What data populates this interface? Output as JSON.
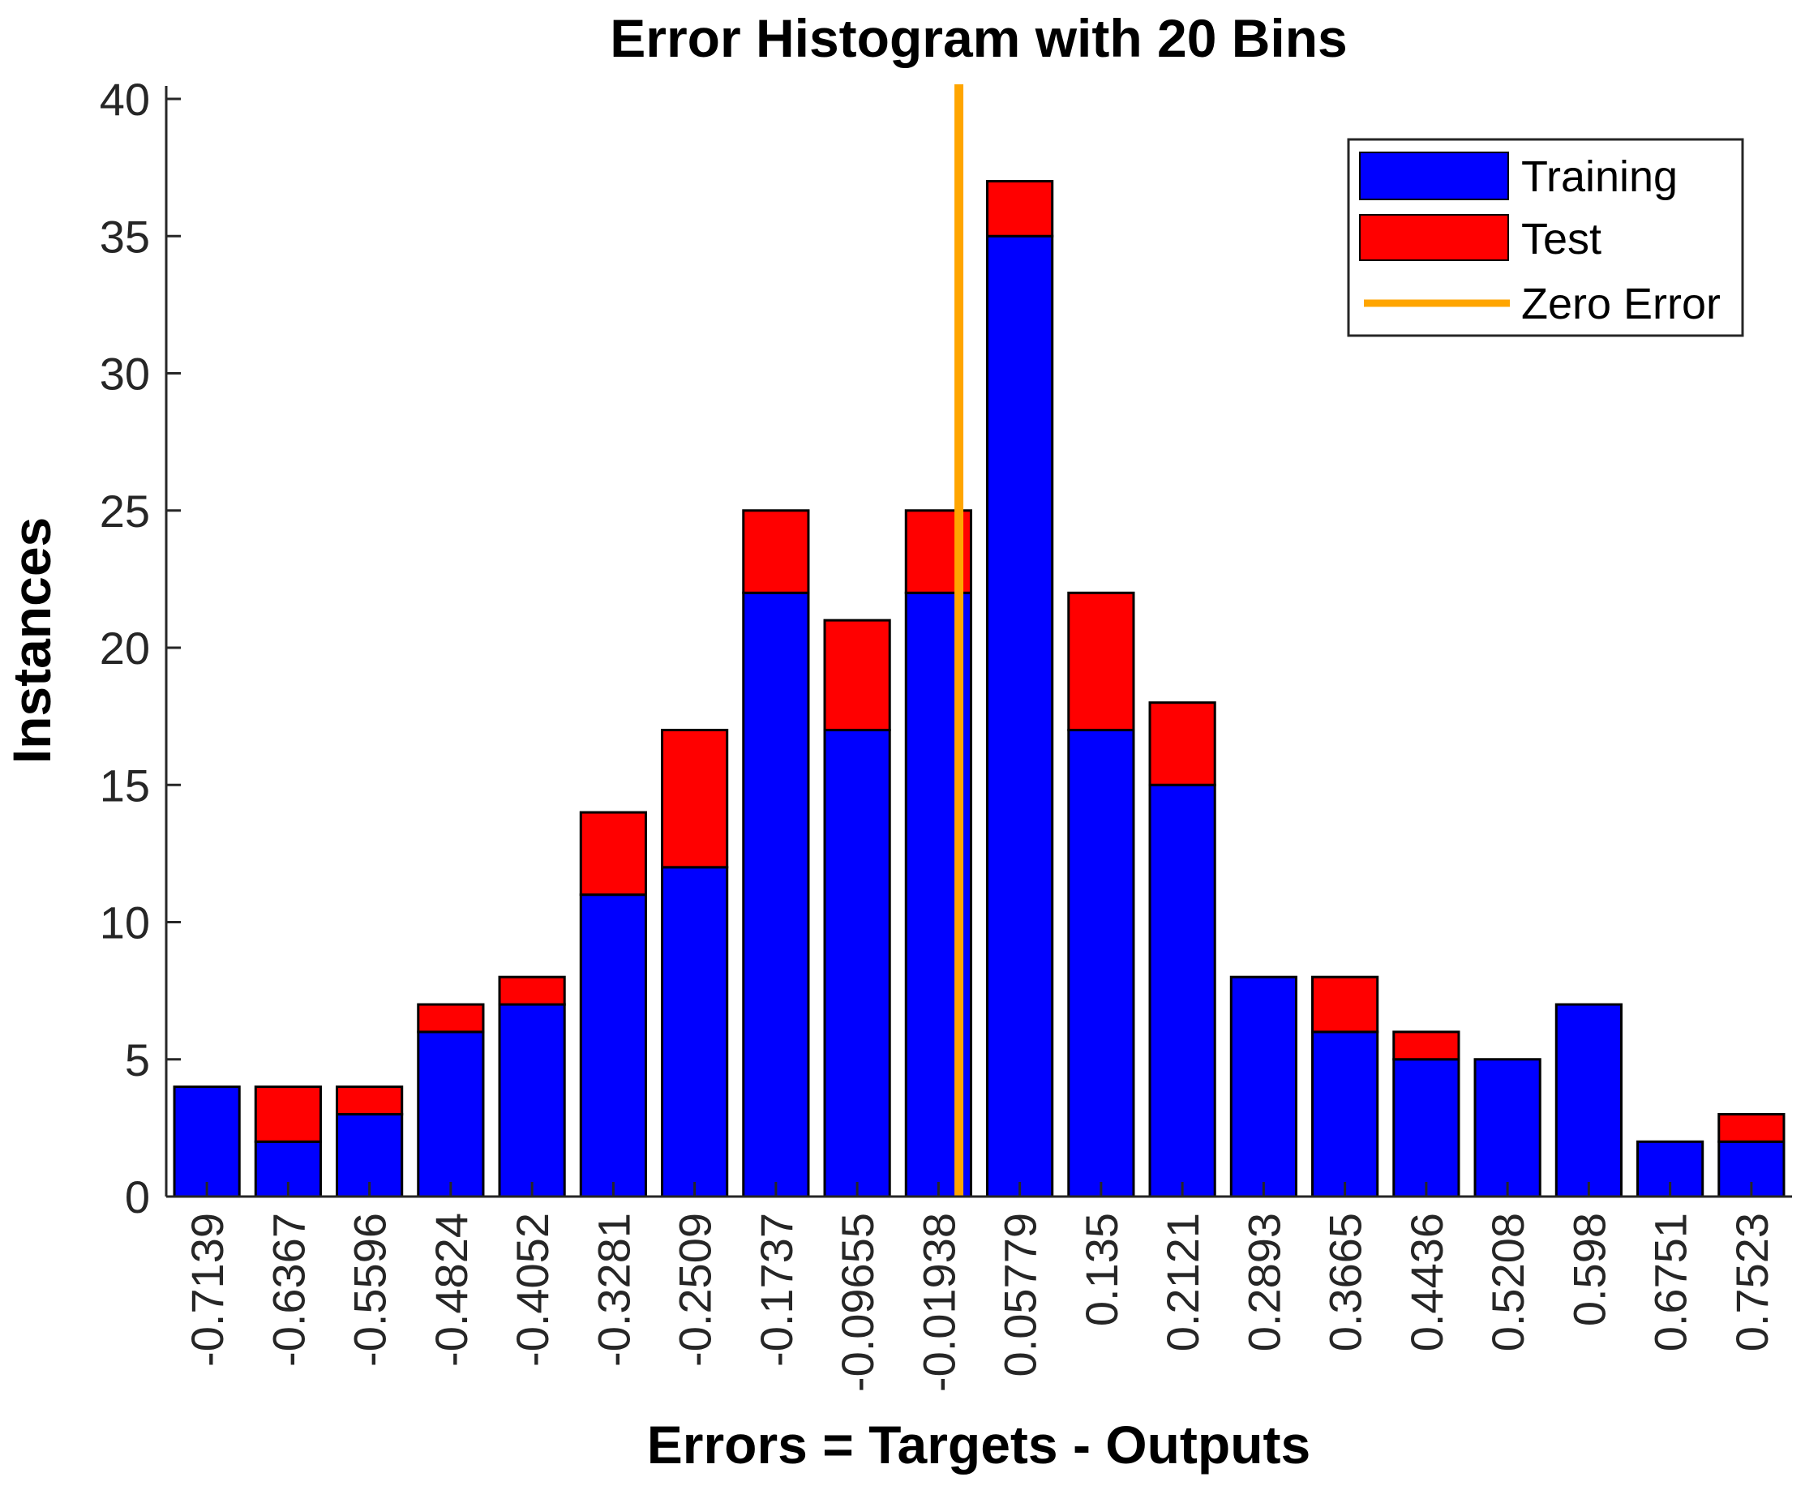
{
  "chart_data": {
    "type": "bar",
    "stacked": true,
    "title": "Error Histogram with 20 Bins",
    "xlabel": "Errors = Targets - Outputs",
    "ylabel": "Instances",
    "ylim": [
      0,
      40
    ],
    "yticks": [
      0,
      5,
      10,
      15,
      20,
      25,
      30,
      35,
      40
    ],
    "categories": [
      "-0.7139",
      "-0.6367",
      "-0.5596",
      "-0.4824",
      "-0.4052",
      "-0.3281",
      "-0.2509",
      "-0.1737",
      "-0.09655",
      "-0.01938",
      "0.05779",
      "0.135",
      "0.2121",
      "0.2893",
      "0.3665",
      "0.4436",
      "0.5208",
      "0.598",
      "0.6751",
      "0.7523"
    ],
    "series": [
      {
        "name": "Training",
        "color": "#0000ff",
        "values": [
          4,
          2,
          3,
          6,
          7,
          11,
          12,
          22,
          17,
          22,
          35,
          17,
          15,
          8,
          6,
          5,
          5,
          7,
          2,
          2
        ]
      },
      {
        "name": "Test",
        "color": "#ff0000",
        "values": [
          0,
          2,
          1,
          1,
          1,
          3,
          5,
          3,
          4,
          3,
          2,
          5,
          3,
          0,
          2,
          1,
          0,
          0,
          0,
          1
        ]
      }
    ],
    "reference_line": {
      "name": "Zero Error",
      "color": "#ffa500",
      "x": 0
    },
    "legend": {
      "position": "top-right",
      "entries": [
        "Training",
        "Test",
        "Zero Error"
      ]
    },
    "grid": false
  }
}
